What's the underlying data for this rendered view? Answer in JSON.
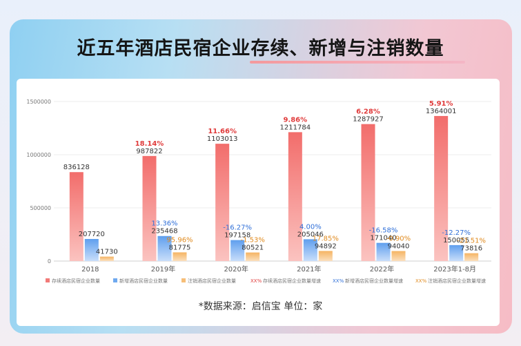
{
  "page": {
    "title": "近五年酒店民宿企业存续、新增与注销数量",
    "source": "*数据来源：启信宝   单位：家"
  },
  "colors": {
    "existing": "#f27a78",
    "new": "#6fa9ef",
    "cancelled": "#f6be78",
    "pct_red": "#e03b3b",
    "pct_blue": "#2f6fd8",
    "pct_orange": "#e08a1e"
  },
  "chart_data": {
    "type": "bar",
    "categories": [
      "2018",
      "2019年",
      "2020年",
      "2021年",
      "2022年",
      "2023年1-8月"
    ],
    "ylim": [
      0,
      1500000
    ],
    "yticks": [
      "0",
      "500000",
      "1000000",
      "1500000"
    ],
    "grid": true,
    "legend_position": "bottom",
    "series": [
      {
        "name": "存续酒店民宿企业数量",
        "values": [
          836128,
          987822,
          1103013,
          1211784,
          1287927,
          1364001
        ],
        "value_labels": [
          "836128",
          "987822",
          "1103013",
          "1211784",
          "1287927",
          "1364001"
        ],
        "growth_labels": [
          "",
          "18.14%",
          "11.66%",
          "9.86%",
          "6.28%",
          "5.91%"
        ]
      },
      {
        "name": "新增酒店民宿企业数量",
        "values": [
          207720,
          235468,
          197158,
          205046,
          171040,
          150055
        ],
        "value_labels": [
          "207720",
          "235468",
          "197158",
          "205046",
          "171040",
          "150055"
        ],
        "growth_labels": [
          "",
          "13.36%",
          "-16.27%",
          "4.00%",
          "-16.58%",
          "-12.27%"
        ]
      },
      {
        "name": "注销酒店民宿企业数量",
        "values": [
          41730,
          81775,
          80521,
          94892,
          94040,
          73816
        ],
        "value_labels": [
          "41730",
          "81775",
          "80521",
          "94892",
          "94040",
          "73816"
        ],
        "growth_labels": [
          "",
          "95.96%",
          "-1.53%",
          "17.85%",
          "-0.90%",
          "-21.51%"
        ]
      }
    ],
    "legend": [
      "存续酒店民宿企业数量",
      "新增酒店民宿企业数量",
      "注销酒店民宿企业数量",
      "存续酒店民宿企业数量增速",
      "新增酒店民宿企业数量增速",
      "注销酒店民宿企业数量增速"
    ],
    "legend_markers": [
      "",
      "",
      "",
      "XX%",
      "XX%",
      "XX%"
    ]
  }
}
